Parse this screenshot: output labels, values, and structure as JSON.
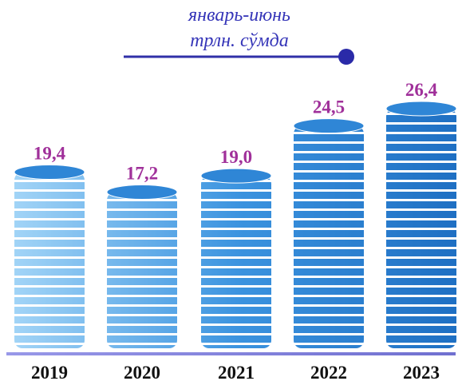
{
  "chart_data": {
    "type": "bar",
    "title": "январь-июнь",
    "subtitle": "трлн. сўмда",
    "categories": [
      "2019",
      "2020",
      "2021",
      "2022",
      "2023"
    ],
    "values": [
      19.4,
      17.2,
      19.0,
      24.5,
      26.4
    ],
    "value_labels": [
      "19,4",
      "17,2",
      "19,0",
      "24,5",
      "26,4"
    ],
    "color": "#2f86d6",
    "label_color": "#a0309a"
  }
}
